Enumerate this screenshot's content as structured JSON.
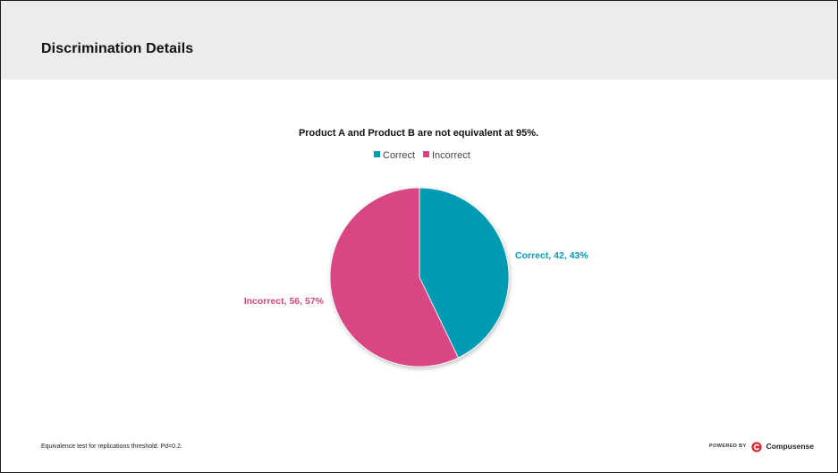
{
  "page": {
    "title": "Discrimination Details",
    "footnote": "Equivalence test for replications threshold: Pd=0.2."
  },
  "branding": {
    "powered_by": "POWERED BY",
    "name": "Compusense",
    "icon": "compusense-logo-icon",
    "icon_color": "#e0262b"
  },
  "colors": {
    "correct": "#009ab3",
    "incorrect": "#d84683"
  },
  "chart_data": {
    "type": "pie",
    "title": "Product A and Product B are not equivalent at 95%.",
    "legend_position": "top",
    "start_angle_deg": 0,
    "direction": "clockwise",
    "slices": [
      {
        "name": "Correct",
        "value": 42,
        "percent": 43,
        "label": "Correct, 42, 43%",
        "color": "#009ab3"
      },
      {
        "name": "Incorrect",
        "value": 56,
        "percent": 57,
        "label": "Incorrect, 56, 57%",
        "color": "#d84683"
      }
    ]
  }
}
